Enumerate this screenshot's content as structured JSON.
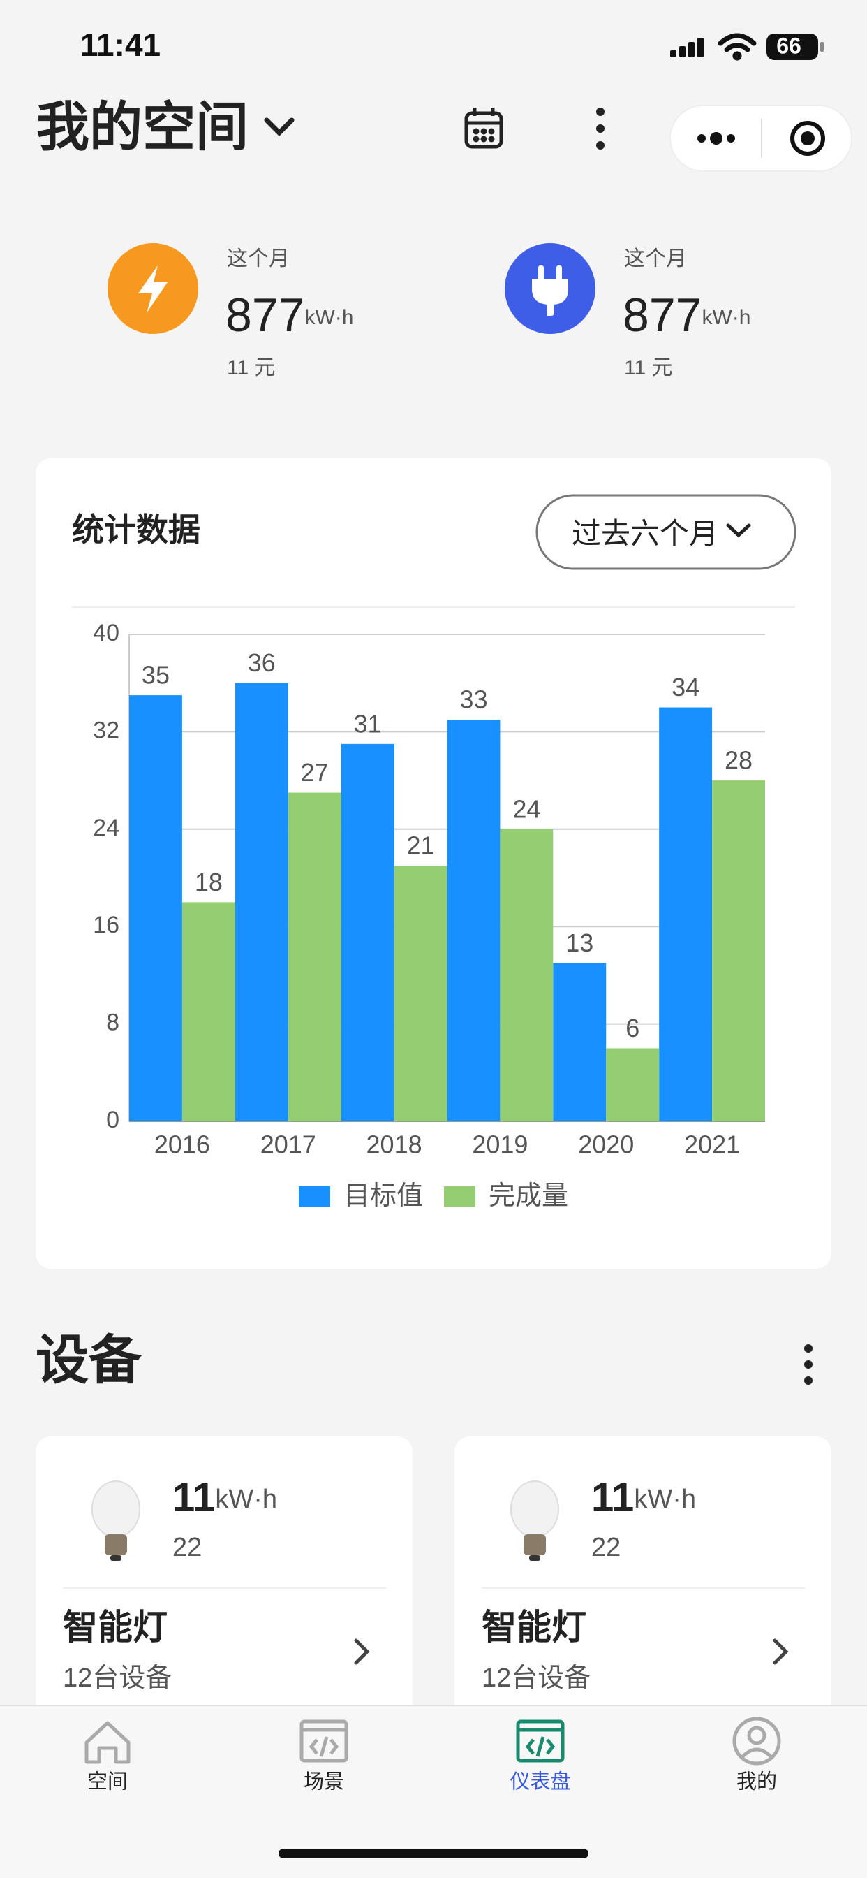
{
  "status_bar": {
    "time": "11:41",
    "battery": "66"
  },
  "header": {
    "title": "我的空间"
  },
  "summary": [
    {
      "label": "这个月",
      "value": "877",
      "unit": "kW·h",
      "cost": "11 元"
    },
    {
      "label": "这个月",
      "value": "877",
      "unit": "kW·h",
      "cost": "11 元"
    }
  ],
  "chart_data": {
    "type": "bar",
    "title": "统计数据",
    "period": "过去六个月",
    "categories": [
      "2016",
      "2017",
      "2018",
      "2019",
      "2020",
      "2021"
    ],
    "series": [
      {
        "name": "目标值",
        "color": "#1890ff",
        "values": [
          35,
          36,
          31,
          33,
          13,
          34
        ]
      },
      {
        "name": "完成量",
        "color": "#95cd73",
        "values": [
          18,
          27,
          21,
          24,
          6,
          28
        ]
      }
    ],
    "ylim": [
      0,
      40
    ],
    "yticks": [
      0,
      8,
      16,
      24,
      32,
      40
    ],
    "grid": true
  },
  "devices": {
    "title": "设备",
    "items": [
      {
        "value": "11",
        "unit": "kW·h",
        "sub": "22",
        "name": "智能灯",
        "count": "12台设备"
      },
      {
        "value": "11",
        "unit": "kW·h",
        "sub": "22",
        "name": "智能灯",
        "count": "12台设备"
      }
    ]
  },
  "tab_bar": [
    "空间",
    "场景",
    "仪表盘",
    "我的"
  ]
}
